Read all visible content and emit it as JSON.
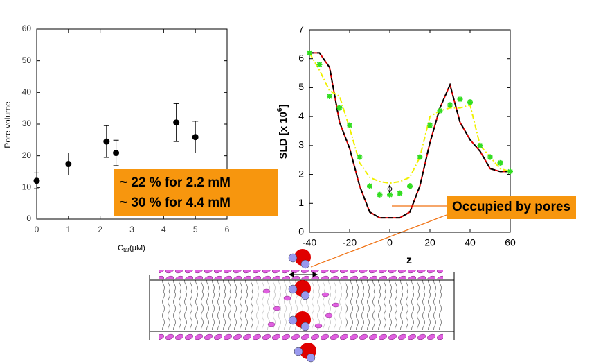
{
  "chart_data": [
    {
      "type": "scatter",
      "ylabel": "Pore volume",
      "xlabel": "C",
      "xlabel_sub": "tat",
      "xlabel_unit": "(μM)",
      "x": [
        0,
        1,
        2.2,
        2.5,
        4.4,
        5
      ],
      "series": [
        {
          "color": "#000000",
          "values": [
            12.1,
            17.4,
            24.5,
            20.9,
            30.5,
            25.9
          ],
          "errors": [
            2.5,
            3.5,
            5,
            4,
            6,
            5
          ]
        }
      ],
      "xlim": [
        0,
        6
      ],
      "ylim": [
        0,
        60
      ],
      "xticks": [
        0,
        1,
        2,
        3,
        4,
        5,
        6
      ],
      "yticks": [
        0,
        10,
        20,
        30,
        40,
        50,
        60
      ],
      "annotation": [
        "~ 22 % for 2.2 mM",
        "~ 30 % for 4.4 mM"
      ]
    },
    {
      "type": "line",
      "ylabel": "SLD [x 10",
      "ylabel_sup": "6",
      "ylabel_end": "]",
      "xlabel": "z",
      "x": [
        -40,
        -35,
        -30,
        -25,
        -20,
        -15,
        -10,
        -5,
        0,
        5,
        10,
        15,
        20,
        25,
        30,
        35,
        40,
        45,
        50,
        55,
        60
      ],
      "series": [
        {
          "color": "#e00000",
          "style": "solid",
          "values": [
            6.2,
            6.2,
            5.7,
            3.8,
            2.9,
            1.6,
            0.7,
            0.5,
            0.5,
            0.5,
            0.7,
            1.6,
            3.1,
            4.3,
            5.1,
            3.8,
            3.2,
            2.8,
            2.2,
            2.1,
            2.1
          ]
        },
        {
          "color": "#000000",
          "style": "dashed",
          "values": [
            6.2,
            6.2,
            5.7,
            3.8,
            2.9,
            1.6,
            0.7,
            0.5,
            0.5,
            0.5,
            0.7,
            1.6,
            3.1,
            4.3,
            5.1,
            3.8,
            3.2,
            2.8,
            2.2,
            2.1,
            2.1
          ]
        },
        {
          "color": "#f0f000",
          "style": "dashdot",
          "values": [
            6.2,
            5.6,
            4.9,
            4.7,
            3.6,
            2.4,
            1.9,
            1.75,
            1.7,
            1.75,
            1.9,
            2.6,
            4.0,
            4.2,
            4.3,
            4.3,
            4.4,
            3.0,
            2.6,
            2.2,
            2.1
          ]
        },
        {
          "color": "#33dd22",
          "style": "stars",
          "values": [
            6.2,
            5.8,
            4.7,
            4.3,
            3.7,
            2.6,
            1.6,
            1.3,
            1.3,
            1.35,
            1.6,
            2.6,
            3.7,
            4.2,
            4.4,
            4.6,
            4.5,
            3.0,
            2.6,
            2.4,
            2.1
          ]
        }
      ],
      "xlim": [
        -40,
        60
      ],
      "ylim": [
        0,
        7
      ],
      "xticks": [
        -40,
        -20,
        0,
        20,
        40,
        60
      ],
      "yticks": [
        0,
        1,
        2,
        3,
        4,
        5,
        6,
        7
      ],
      "annotation": "Occupied by pores"
    }
  ]
}
